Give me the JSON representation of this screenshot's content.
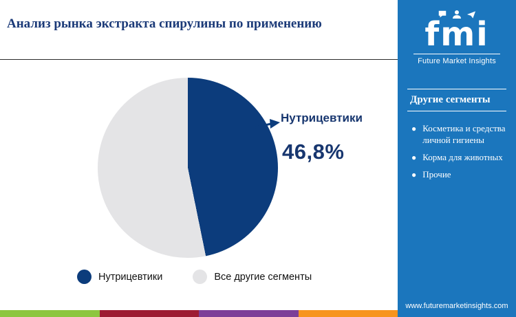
{
  "header": {
    "title": "Анализ рынка экстракта спирулины по применению"
  },
  "chart_data": {
    "type": "pie",
    "title": "Анализ рынка экстракта спирулины по применению",
    "slices": [
      {
        "label": "Нутрицевтики",
        "value": 46.8,
        "color": "#0c3c7c"
      },
      {
        "label": "Все другие сегменты",
        "value": 53.2,
        "color": "#e4e4e6"
      }
    ],
    "annotation": {
      "label": "Нутрицевтики",
      "value_text": "46,8%"
    },
    "legend": [
      {
        "label": "Нутрицевтики",
        "color": "#0c3c7c"
      },
      {
        "label": "Все другие сегменты",
        "color": "#e4e4e6"
      }
    ]
  },
  "sidebar": {
    "accent_color": "#1b76bd",
    "logo": {
      "text": "fmi",
      "subtitle": "Future Market Insights"
    },
    "panel": {
      "title": "Другие сегменты",
      "items": [
        "Косметика и средства личной гигиены",
        "Корма для животных",
        "Прочие"
      ]
    },
    "website": "www.futuremarketinsights.com"
  },
  "footer": {
    "stripe_colors": [
      "#8dc63f",
      "#9d1c33",
      "#7d3f98",
      "#f7941e"
    ]
  }
}
